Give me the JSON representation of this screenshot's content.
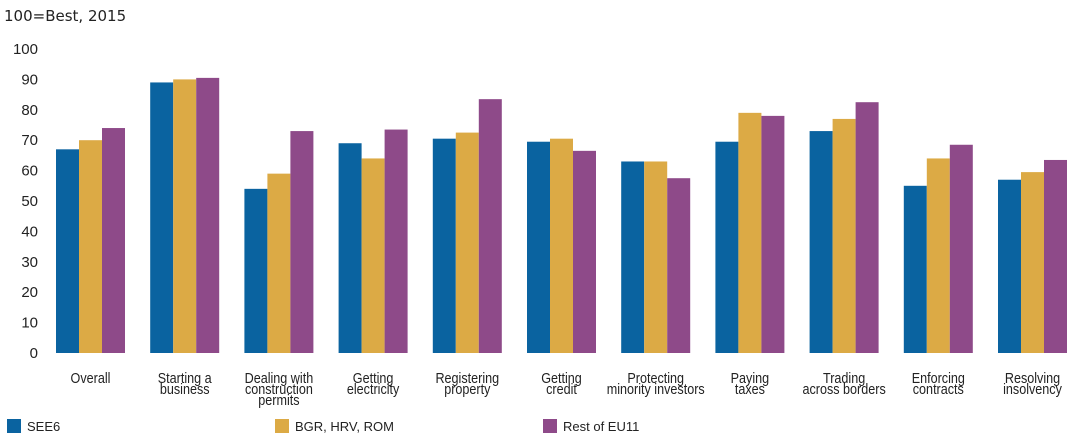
{
  "chart_data": {
    "type": "bar",
    "subtitle": "100=Best, 2015",
    "ylim": [
      0,
      100
    ],
    "yticks": [
      0,
      10,
      20,
      30,
      40,
      50,
      60,
      70,
      80,
      90,
      100
    ],
    "grid": false,
    "legend_position": "bottom",
    "categories": [
      [
        "Overall"
      ],
      [
        "Starting a",
        "business"
      ],
      [
        "Dealing with",
        "construction",
        "permits"
      ],
      [
        "Getting",
        "electricity"
      ],
      [
        "Registering",
        "property"
      ],
      [
        "Getting",
        "credit"
      ],
      [
        "Protecting",
        "minority investors"
      ],
      [
        "Paying",
        "taxes"
      ],
      [
        "Trading",
        "across borders"
      ],
      [
        "Enforcing",
        "contracts"
      ],
      [
        "Resolving",
        "insolvency"
      ]
    ],
    "series": [
      {
        "name": "SEE6",
        "color": "#0a63a0",
        "values": [
          67,
          89,
          54,
          69,
          70.5,
          69.5,
          63,
          69.5,
          73,
          55,
          57
        ]
      },
      {
        "name": "BGR, HRV, ROM",
        "color": "#dcaa45",
        "values": [
          70,
          90,
          59,
          64,
          72.5,
          70.5,
          63,
          79,
          77,
          64,
          59.5
        ]
      },
      {
        "name": "Rest of EU11",
        "color": "#8e4a89",
        "values": [
          74,
          90.5,
          73,
          73.5,
          83.5,
          66.5,
          57.5,
          78,
          82.5,
          68.5,
          63.5
        ]
      }
    ]
  }
}
